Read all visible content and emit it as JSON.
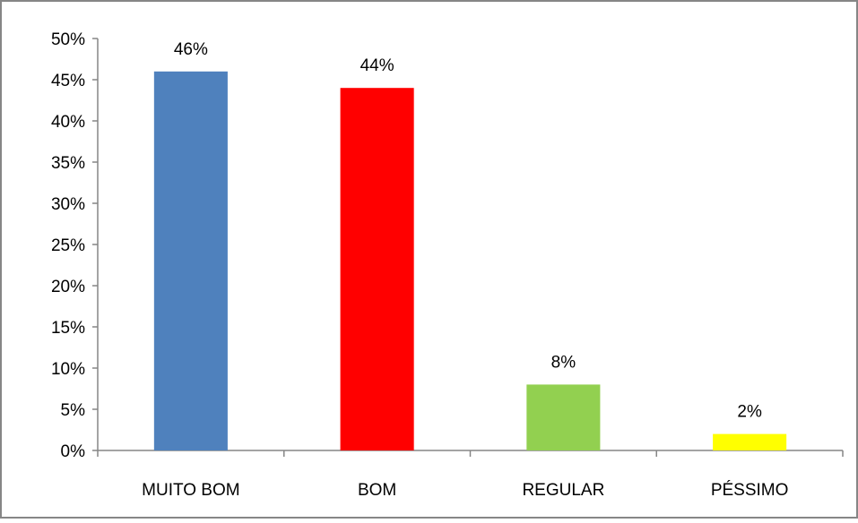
{
  "chart_data": {
    "type": "bar",
    "title": "",
    "xlabel": "",
    "ylabel": "",
    "categories": [
      "MUITO BOM",
      "BOM",
      "REGULAR",
      "PÉSSIMO"
    ],
    "values": [
      46,
      44,
      8,
      2
    ],
    "data_labels": [
      "46%",
      "44%",
      "8%",
      "2%"
    ],
    "colors": [
      "#4f81bd",
      "#ff0000",
      "#92d050",
      "#ffff00"
    ],
    "ylim": [
      0,
      50
    ],
    "yticks": [
      0,
      5,
      10,
      15,
      20,
      25,
      30,
      35,
      40,
      45,
      50
    ],
    "ytick_labels": [
      "0%",
      "5%",
      "10%",
      "15%",
      "20%",
      "25%",
      "30%",
      "35%",
      "40%",
      "45%",
      "50%"
    ],
    "grid": false,
    "legend": "none",
    "frame_color": "#868686",
    "axis_color": "#868686"
  }
}
